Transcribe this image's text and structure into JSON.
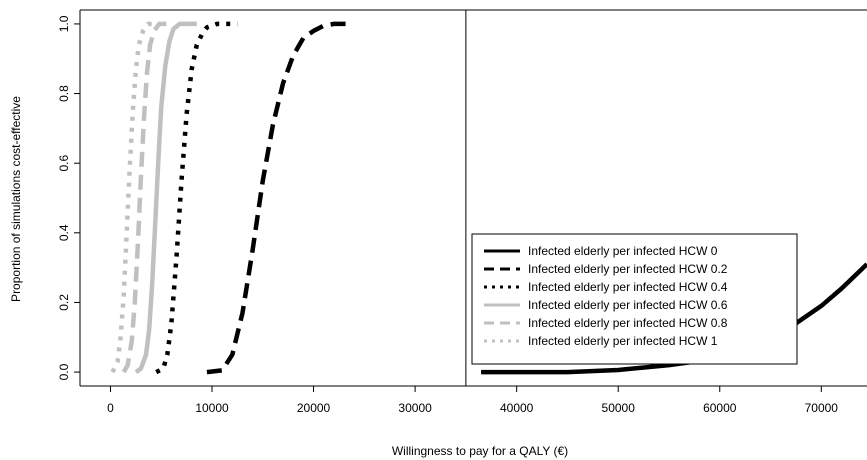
{
  "chart_data": {
    "type": "line",
    "title": "",
    "xlabel": "Willingness to pay for a QALY (€)",
    "ylabel": "Proportion of simulations cost-effective",
    "xlim": [
      -3000,
      74500
    ],
    "ylim": [
      -0.04,
      1.04
    ],
    "x_ticks": [
      0,
      10000,
      20000,
      30000,
      40000,
      50000,
      60000,
      70000
    ],
    "x_tick_labels": [
      "0",
      "10000",
      "20000",
      "30000",
      "40000",
      "50000",
      "60000",
      "70000"
    ],
    "y_ticks": [
      0.0,
      0.2,
      0.4,
      0.6,
      0.8,
      1.0
    ],
    "y_tick_labels": [
      "0.0",
      "0.2",
      "0.4",
      "0.6",
      "0.8",
      "1.0"
    ],
    "panel_divider_x": 35000,
    "grid": false,
    "legend_position": "bottom-right",
    "series": [
      {
        "name": "Infected elderly per infected HCW 0",
        "color": "#000000",
        "dash": "solid",
        "x": [
          36500,
          40000,
          45000,
          50000,
          55000,
          60000,
          62000,
          64000,
          66000,
          68000,
          70000,
          72000,
          74500
        ],
        "y": [
          0.0,
          0.0,
          0.0,
          0.006,
          0.02,
          0.04,
          0.055,
          0.08,
          0.11,
          0.15,
          0.19,
          0.24,
          0.31
        ]
      },
      {
        "name": "Infected elderly per infected HCW 0.2",
        "color": "#000000",
        "dash": "long",
        "x": [
          9500,
          11000,
          12000,
          13000,
          14000,
          15000,
          16000,
          17000,
          18000,
          19000,
          20000,
          21000,
          22000,
          23500
        ],
        "y": [
          0.0,
          0.005,
          0.05,
          0.17,
          0.35,
          0.55,
          0.71,
          0.83,
          0.91,
          0.96,
          0.98,
          0.995,
          1.0,
          1.0
        ]
      },
      {
        "name": "Infected elderly per infected HCW 0.4",
        "color": "#000000",
        "dash": "dotted",
        "x": [
          4500,
          5200,
          5600,
          6000,
          6500,
          7000,
          7500,
          8000,
          8500,
          9000,
          9500,
          10500,
          12500
        ],
        "y": [
          0.0,
          0.01,
          0.05,
          0.14,
          0.33,
          0.55,
          0.74,
          0.87,
          0.94,
          0.97,
          0.99,
          1.0,
          1.0
        ]
      },
      {
        "name": "Infected elderly per infected HCW 0.6",
        "color": "#c0c0c0",
        "dash": "solid",
        "x": [
          2500,
          3000,
          3500,
          3800,
          4100,
          4400,
          4700,
          5000,
          5400,
          5800,
          6200,
          6800,
          8500
        ],
        "y": [
          0.0,
          0.01,
          0.05,
          0.12,
          0.25,
          0.42,
          0.6,
          0.76,
          0.88,
          0.95,
          0.985,
          1.0,
          1.0
        ]
      },
      {
        "name": "Infected elderly per infected HCW 0.8",
        "color": "#c0c0c0",
        "dash": "long",
        "x": [
          1300,
          1700,
          2100,
          2400,
          2700,
          3000,
          3300,
          3600,
          3900,
          4300,
          4800,
          5500
        ],
        "y": [
          0.0,
          0.02,
          0.09,
          0.2,
          0.37,
          0.56,
          0.73,
          0.86,
          0.94,
          0.98,
          1.0,
          1.0
        ]
      },
      {
        "name": "Infected elderly per infected HCW 1",
        "color": "#c0c0c0",
        "dash": "dotted",
        "x": [
          200,
          700,
          1000,
          1300,
          1600,
          1900,
          2200,
          2500,
          2800,
          3200,
          3700,
          4500
        ],
        "y": [
          0.0,
          0.03,
          0.1,
          0.22,
          0.4,
          0.59,
          0.75,
          0.87,
          0.94,
          0.98,
          1.0,
          1.0
        ]
      }
    ]
  }
}
